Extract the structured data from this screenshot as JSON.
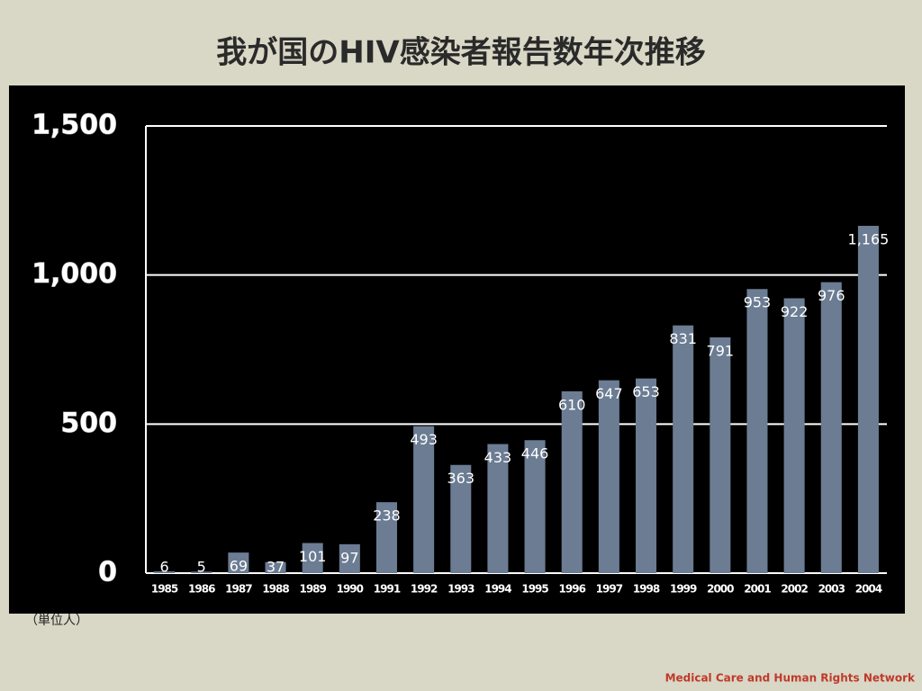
{
  "chart_data": {
    "type": "bar",
    "title": "我が国のHIV感染者報告数年次推移",
    "categories": [
      "1985",
      "1986",
      "1987",
      "1988",
      "1989",
      "1990",
      "1991",
      "1992",
      "1993",
      "1994",
      "1995",
      "1996",
      "1997",
      "1998",
      "1999",
      "2000",
      "2001",
      "2002",
      "2003",
      "2004"
    ],
    "values": [
      6,
      5,
      69,
      37,
      101,
      97,
      238,
      493,
      363,
      433,
      446,
      610,
      647,
      653,
      831,
      791,
      953,
      922,
      976,
      1165
    ],
    "value_labels": [
      "6",
      "5",
      "69",
      "37",
      "101",
      "97",
      "238",
      "493",
      "363",
      "433",
      "446",
      "610",
      "647",
      "653",
      "831",
      "791",
      "953",
      "922",
      "976",
      "1,165"
    ],
    "color": "#6b7c93",
    "ylim": [
      0,
      1500
    ],
    "yticks": [
      0,
      500,
      {
        "value": 1000,
        "label": "1,000"
      },
      {
        "value": 1500,
        "label": "1,500"
      }
    ],
    "grid": true,
    "note": "（単位人）",
    "source": "Medical Care and Human Rights Network"
  }
}
